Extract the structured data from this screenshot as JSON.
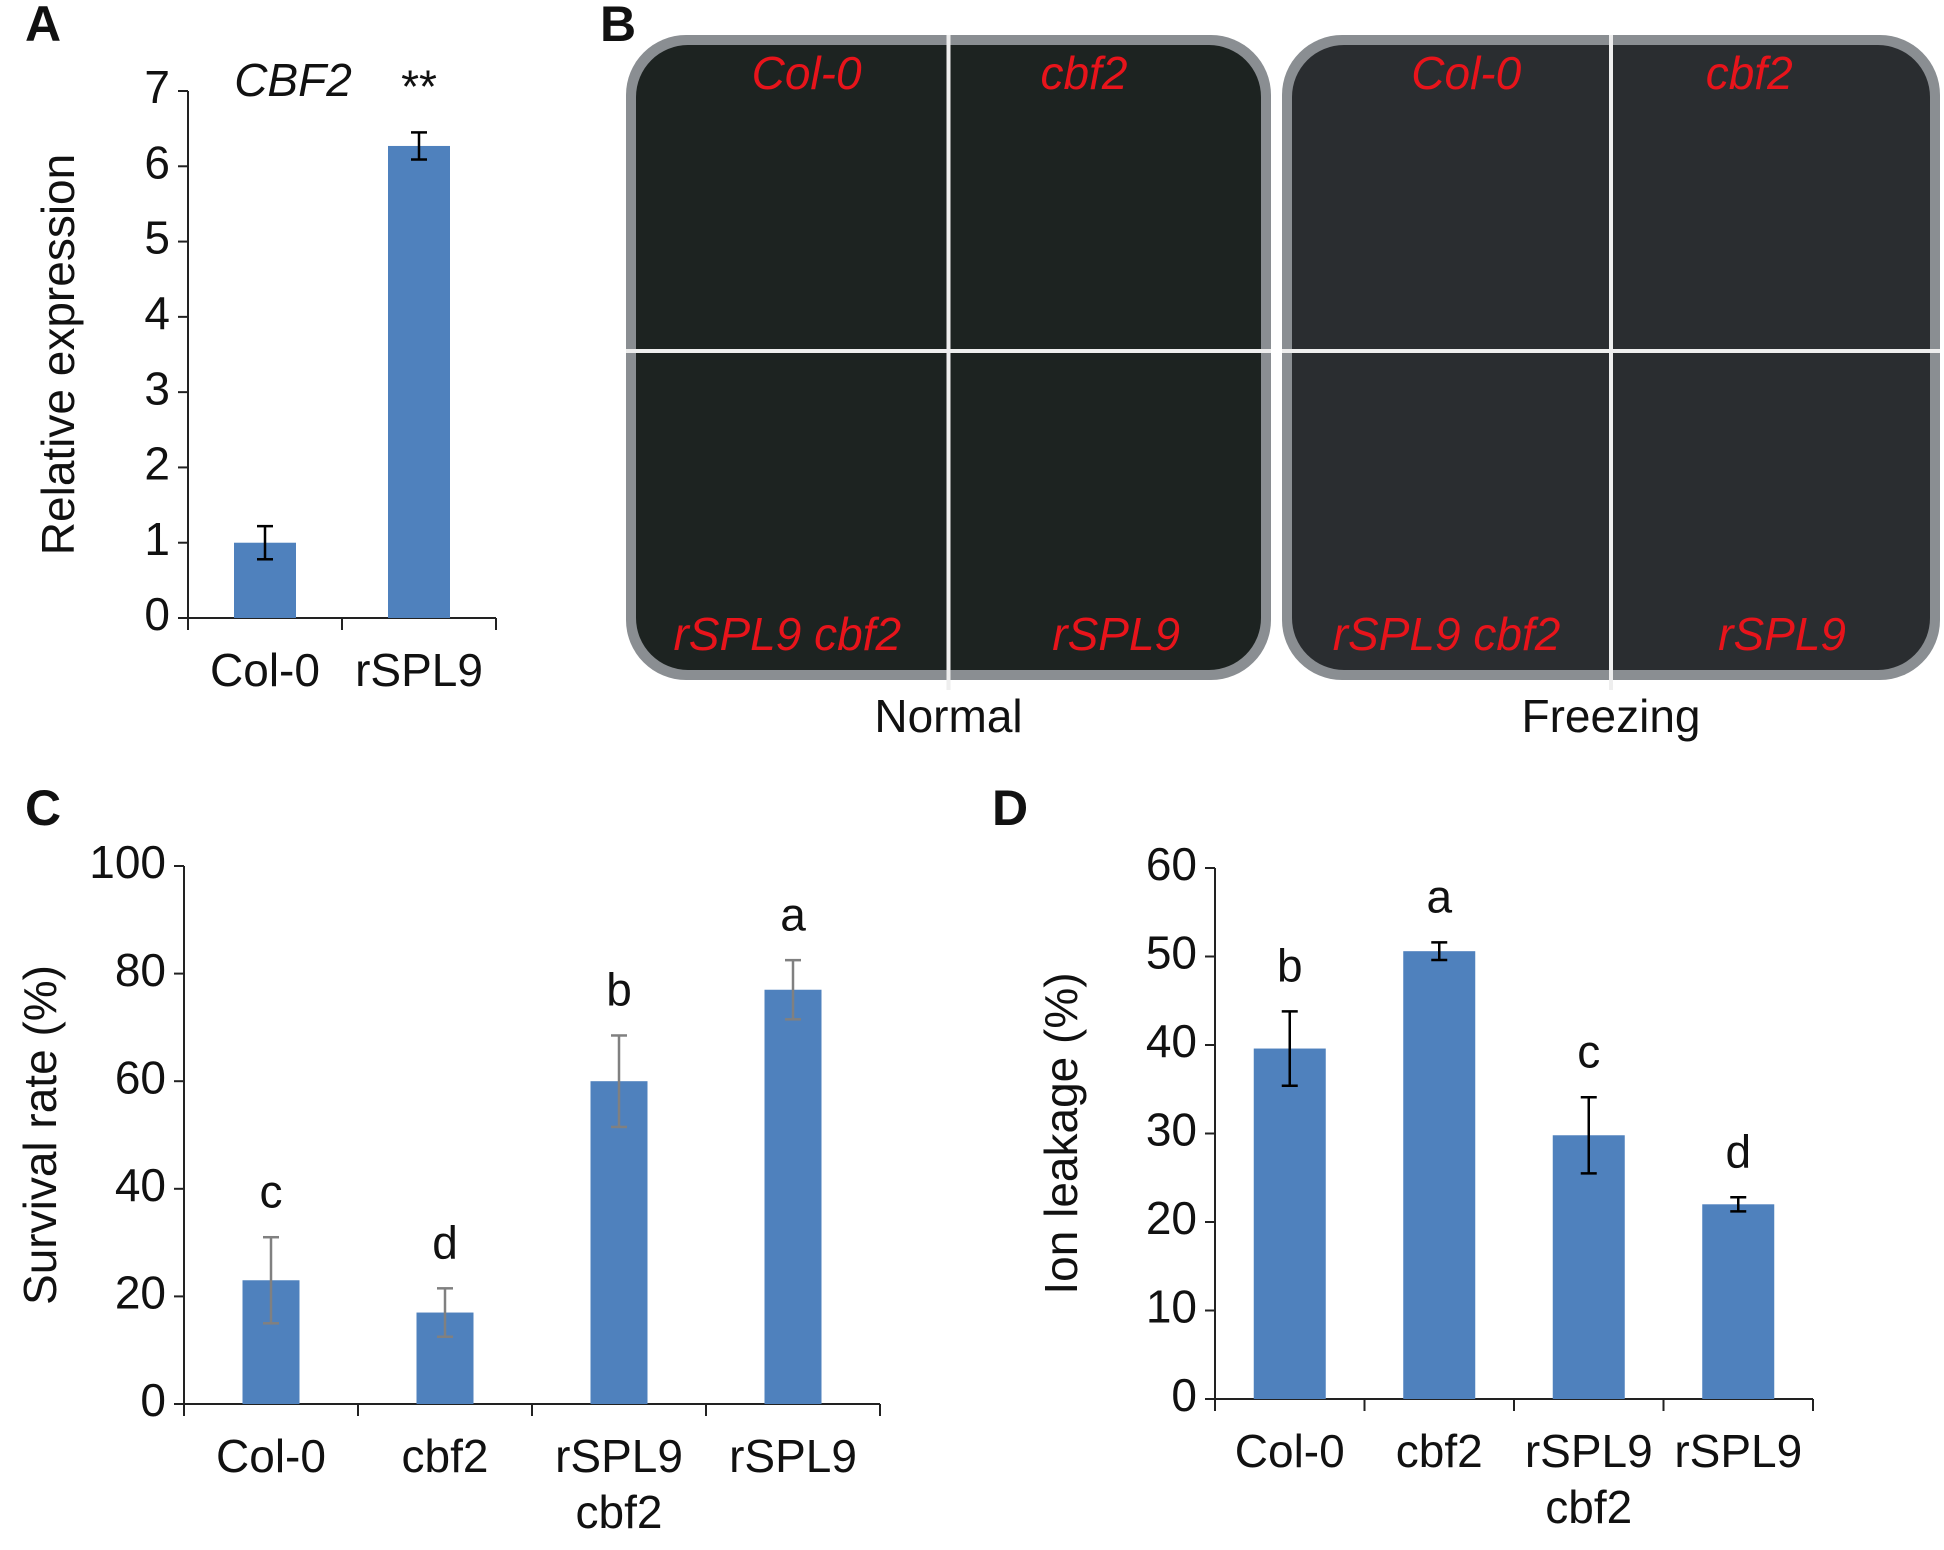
{
  "chart_data": [
    {
      "panel": "A",
      "type": "bar",
      "title": "CBF2",
      "ylabel": "Relative expression",
      "categories": [
        "Col-0",
        "rSPL9"
      ],
      "values": [
        1.0,
        6.27
      ],
      "errors": [
        0.22,
        0.18
      ],
      "annotations": [
        null,
        "**"
      ],
      "color": "#4f81bd",
      "error_color": "#000000",
      "ylim": [
        0,
        7
      ],
      "yticks": [
        0,
        1,
        2,
        3,
        4,
        5,
        6,
        7
      ]
    },
    {
      "panel": "B",
      "type": "photo",
      "plates": [
        {
          "caption": "Normal",
          "labels": [
            "Col-0",
            "cbf2",
            "rSPL9 cbf2",
            "rSPL9"
          ]
        },
        {
          "caption": "Freezing",
          "labels": [
            "Col-0",
            "cbf2",
            "rSPL9 cbf2",
            "rSPL9"
          ]
        }
      ]
    },
    {
      "panel": "C",
      "type": "bar",
      "ylabel": "Survival rate (%)",
      "categories": [
        "Col-0",
        "cbf2",
        "rSPL9 cbf2",
        "rSPL9"
      ],
      "values": [
        23,
        17,
        60,
        77
      ],
      "errors": [
        8,
        4.5,
        8.5,
        5.5
      ],
      "annotations": [
        "c",
        "d",
        "b",
        "a"
      ],
      "color": "#4f81bd",
      "error_color": "#808080",
      "ylim": [
        0,
        100
      ],
      "yticks": [
        0,
        20,
        40,
        60,
        80,
        100
      ]
    },
    {
      "panel": "D",
      "type": "bar",
      "ylabel": "Ion leakage (%)",
      "categories": [
        "Col-0",
        "cbf2",
        "rSPL9 cbf2",
        "rSPL9"
      ],
      "values": [
        39.6,
        50.6,
        29.8,
        22
      ],
      "errors": [
        4.2,
        1,
        4.3,
        0.8
      ],
      "annotations": [
        "b",
        "a",
        "c",
        "d"
      ],
      "color": "#4f81bd",
      "error_color": "#000000",
      "ylim": [
        0,
        60
      ],
      "yticks": [
        0,
        10,
        20,
        30,
        40,
        50,
        60
      ]
    }
  ]
}
